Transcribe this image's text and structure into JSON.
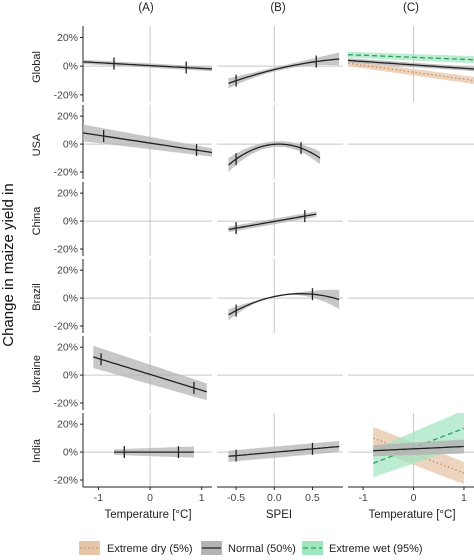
{
  "column_titles": [
    "(A)",
    "(B)",
    "(C)"
  ],
  "row_labels": [
    "Global",
    "USA",
    "China",
    "Brazil",
    "Ukraine",
    "India"
  ],
  "y_axis_label": "Change in maize yield in",
  "x_axis_labels": [
    "Temperature [°C]",
    "SPEI",
    "Temperature [°C]"
  ],
  "legend": [
    {
      "key": "dry",
      "label": "Extreme dry (5%)"
    },
    {
      "key": "normal",
      "label": "Normal (50%)"
    },
    {
      "key": "wet",
      "label": "Extreme wet (95%)"
    }
  ],
  "colors": {
    "panel_bg": "#ffffff",
    "zero_line": "#c8c8c8",
    "axis": "#222222",
    "normal_line": "#222222",
    "normal_ribbon": "#b4b4b4",
    "dry_line": "#c98a5e",
    "dry_ribbon": "#e6c6a8",
    "wet_line": "#2e9e62",
    "wet_ribbon": "#9fe6bf",
    "text": "#222222"
  },
  "chart_data": {
    "type": "line",
    "x_ranges": {
      "A": [
        -1.3,
        1.2
      ],
      "B": [
        -0.75,
        0.9
      ],
      "C": [
        -1.3,
        1.2
      ]
    },
    "x_ticks": {
      "A": [
        -1,
        0,
        1
      ],
      "B": [
        -0.5,
        0.0,
        0.5
      ],
      "C": [
        -1,
        0,
        1
      ]
    },
    "x_tick_labels": {
      "A": [
        "-1",
        "0",
        "1"
      ],
      "B": [
        "-0.5",
        "0.0",
        "0.5"
      ],
      "C": [
        "-1",
        "0",
        "1"
      ]
    },
    "y_range": [
      -0.25,
      0.28
    ],
    "y_ticks": [
      -0.2,
      0,
      0.2
    ],
    "y_tick_labels": [
      "-20%",
      "0%",
      "20%"
    ],
    "panels": [
      {
        "row": "Global",
        "col": "A",
        "type": "linear",
        "x": [
          -1.3,
          1.2
        ],
        "y": [
          0.03,
          -0.02
        ],
        "half_band": [
          0.015,
          0.015
        ],
        "marks": [
          -0.7,
          0.7
        ]
      },
      {
        "row": "Global",
        "col": "B",
        "type": "quadratic",
        "x": [
          -0.6,
          0.2,
          0.85
        ],
        "y": [
          -0.12,
          0.0,
          0.05
        ],
        "half_band": [
          0.035,
          0.015,
          0.045
        ],
        "marks": [
          -0.5,
          0.55
        ]
      },
      {
        "row": "Global",
        "col": "C",
        "type": "linear",
        "x": [
          -1.3,
          1.2
        ],
        "y": [
          0.04,
          -0.02
        ],
        "half_band": [
          0.015,
          0.015
        ],
        "dry": {
          "y": [
            0.02,
            -0.1
          ],
          "half_band": [
            0.02,
            0.025
          ]
        },
        "wet": {
          "y": [
            0.08,
            0.045
          ],
          "half_band": [
            0.02,
            0.025
          ]
        }
      },
      {
        "row": "USA",
        "col": "A",
        "type": "linear",
        "x": [
          -1.3,
          1.2
        ],
        "y": [
          0.08,
          -0.06
        ],
        "half_band": [
          0.06,
          0.03
        ],
        "marks": [
          -0.9,
          0.9
        ]
      },
      {
        "row": "USA",
        "col": "B",
        "type": "quadratic",
        "x": [
          -0.6,
          0.05,
          0.6
        ],
        "y": [
          -0.15,
          0.0,
          -0.1
        ],
        "half_band": [
          0.05,
          0.02,
          0.045
        ],
        "marks": [
          -0.5,
          0.35
        ]
      },
      {
        "row": "China",
        "col": "B",
        "type": "linear",
        "x": [
          -0.6,
          0.55
        ],
        "y": [
          -0.06,
          0.05
        ],
        "half_band": [
          0.02,
          0.02
        ],
        "marks": [
          -0.5,
          0.4
        ]
      },
      {
        "row": "Brazil",
        "col": "B",
        "type": "quadratic",
        "x": [
          -0.6,
          0.45,
          0.85
        ],
        "y": [
          -0.12,
          0.03,
          -0.01
        ],
        "half_band": [
          0.04,
          0.02,
          0.07
        ],
        "marks": [
          -0.5,
          0.5
        ]
      },
      {
        "row": "Ukraine",
        "col": "A",
        "type": "linear",
        "x": [
          -1.1,
          1.1
        ],
        "y": [
          0.13,
          -0.12
        ],
        "half_band": [
          0.08,
          0.06
        ],
        "marks": [
          -0.95,
          0.85
        ]
      },
      {
        "row": "India",
        "col": "A",
        "type": "linear",
        "x": [
          -0.7,
          0.85
        ],
        "y": [
          0.0,
          0.0
        ],
        "half_band": [
          0.02,
          0.04
        ],
        "marks": [
          -0.5,
          0.55
        ]
      },
      {
        "row": "India",
        "col": "B",
        "type": "linear",
        "x": [
          -0.6,
          0.85
        ],
        "y": [
          -0.03,
          0.04
        ],
        "half_band": [
          0.04,
          0.04
        ],
        "marks": [
          -0.5,
          0.5
        ]
      },
      {
        "row": "India",
        "col": "C",
        "type": "linear",
        "x": [
          -0.8,
          1.0
        ],
        "y": [
          0.01,
          0.04
        ],
        "half_band": [
          0.04,
          0.05
        ],
        "dry": {
          "y": [
            0.1,
            -0.15
          ],
          "half_band": [
            0.08,
            0.08
          ]
        },
        "wet": {
          "y": [
            -0.08,
            0.17
          ],
          "half_band": [
            0.1,
            0.13
          ]
        }
      }
    ]
  }
}
